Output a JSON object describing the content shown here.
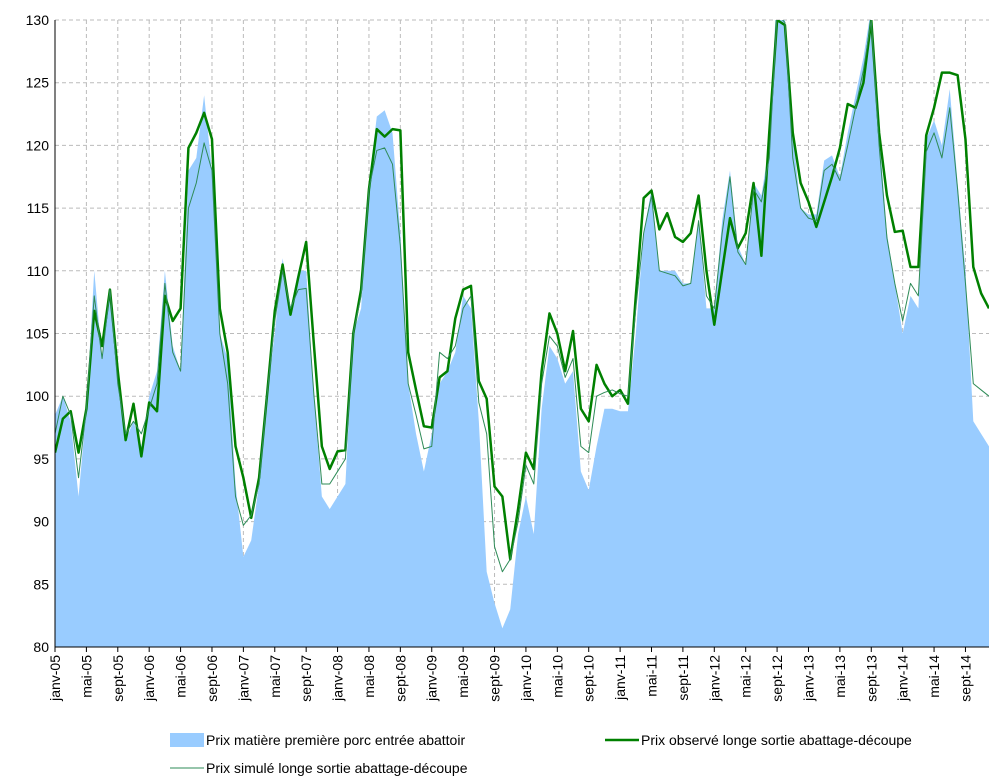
{
  "chart_data": {
    "type": "area-line",
    "categories": [
      "janv-05",
      null,
      null,
      null,
      "mai-05",
      null,
      null,
      null,
      "sept-05",
      null,
      null,
      null,
      "janv-06",
      null,
      null,
      null,
      "mai-06",
      null,
      null,
      null,
      "sept-06",
      null,
      null,
      null,
      "janv-07",
      null,
      null,
      null,
      "mai-07",
      null,
      null,
      null,
      "sept-07",
      null,
      null,
      null,
      "janv-08",
      null,
      null,
      null,
      "mai-08",
      null,
      null,
      null,
      "sept-08",
      null,
      null,
      null,
      "janv-09",
      null,
      null,
      null,
      "mai-09",
      null,
      null,
      null,
      "sept-09",
      null,
      null,
      null,
      "janv-10",
      null,
      null,
      null,
      "mai-10",
      null,
      null,
      null,
      "sept-10",
      null,
      null,
      null,
      "janv-11",
      null,
      null,
      null,
      "mai-11",
      null,
      null,
      null,
      "sept-11",
      null,
      null,
      null,
      "janv-12",
      null,
      null,
      null,
      "mai-12",
      null,
      null,
      null,
      "sept-12",
      null,
      null,
      null,
      "janv-13",
      null,
      null,
      null,
      "mai-13",
      null,
      null,
      null,
      "sept-13",
      null,
      null,
      null,
      "janv-14",
      null,
      null,
      null,
      "mai-14",
      null,
      null,
      null,
      "sept-14",
      null,
      null,
      null
    ],
    "series": [
      {
        "name": "Prix matière première porc entrée abattoir",
        "color": "#99ccff",
        "style": "area",
        "values": [
          98.5,
          100,
          98,
          92,
          99,
          110,
          103,
          108.5,
          101,
          96.5,
          98,
          96,
          100,
          102,
          110,
          104,
          102,
          118,
          119,
          124,
          118,
          105,
          103,
          93,
          87.2,
          88.5,
          93,
          100,
          105,
          111,
          107,
          110,
          110,
          100,
          92,
          91,
          92,
          93,
          105,
          107,
          117,
          122.3,
          122.8,
          121,
          113,
          101,
          97,
          94,
          97,
          101,
          102,
          103.5,
          108,
          107,
          98,
          86,
          83.5,
          81.5,
          83,
          89,
          92,
          89,
          99,
          104,
          103,
          101,
          102,
          94,
          92.5,
          96,
          99,
          99,
          98.8,
          98.8,
          105,
          113,
          116.5,
          110,
          110,
          110,
          109,
          109,
          114,
          107,
          107,
          114,
          118,
          112,
          110.5,
          117,
          116,
          120,
          133,
          130,
          121,
          115,
          114.5,
          114.5,
          118.8,
          119.2,
          117.5,
          121,
          124,
          127,
          131,
          121,
          113,
          109,
          105,
          108,
          107,
          120.5,
          122,
          120,
          124.5,
          117,
          110,
          98,
          97,
          96
        ]
      },
      {
        "name": "Prix observé longe sortie abattage-découpe",
        "color": "#008000",
        "style": "thick",
        "values": [
          95.5,
          98.2,
          98.8,
          95.5,
          99,
          106.8,
          104,
          108.5,
          102,
          96.5,
          99.4,
          95.2,
          99.5,
          98.8,
          108,
          106,
          107,
          119.8,
          121,
          122.6,
          120.5,
          107,
          103.5,
          96,
          93.5,
          90.3,
          93.5,
          100,
          106.8,
          110.5,
          106.5,
          109.5,
          112.3,
          104,
          96,
          94.2,
          95.6,
          95.7,
          105,
          108.5,
          116.5,
          121.3,
          120.7,
          121.3,
          121.2,
          103.5,
          100.5,
          97.6,
          97.5,
          101.5,
          102,
          106.2,
          108.5,
          108.8,
          101.2,
          99.8,
          92.8,
          92,
          87,
          91,
          95.5,
          94.2,
          102,
          106.6,
          105,
          102,
          105.2,
          99,
          98,
          102.5,
          101,
          100,
          100.5,
          99.4,
          108,
          115.8,
          116.4,
          113.3,
          114.6,
          112.7,
          112.3,
          113,
          116,
          110,
          105.7,
          110,
          114.2,
          111.8,
          113,
          117,
          111.2,
          121,
          130,
          129.6,
          121,
          117,
          115.5,
          113.5,
          115.5,
          117.5,
          119.8,
          123.3,
          123,
          125,
          130,
          121,
          116,
          113.1,
          113.2,
          110.3,
          110.3,
          120.8,
          123,
          125.8,
          125.8,
          125.6,
          120.5,
          110.3,
          108.2,
          107
        ]
      },
      {
        "name": "Prix simulé longe sortie abattage-découpe",
        "color": "#2e8b57",
        "style": "thin",
        "values": [
          97,
          100,
          98.5,
          93.5,
          99,
          108,
          103,
          108.5,
          101,
          97,
          98,
          97,
          99,
          101,
          109,
          103.5,
          102,
          115,
          117,
          120.2,
          118,
          105,
          101,
          92,
          89.7,
          90.5,
          93,
          100,
          106,
          110,
          107,
          108.5,
          108.6,
          100,
          93,
          93,
          94,
          95,
          105,
          108,
          116.5,
          119.6,
          119.8,
          118.5,
          112,
          101,
          98.5,
          95.8,
          96,
          103.5,
          103,
          104,
          107,
          108,
          99.5,
          97,
          88,
          86,
          87,
          90,
          94.5,
          93,
          101,
          104.8,
          104,
          101.5,
          103,
          96,
          95.5,
          100,
          100.3,
          100.5,
          100.2,
          100,
          107,
          113,
          116,
          110,
          109.8,
          109.6,
          108.8,
          109,
          114,
          108,
          107,
          113,
          117.5,
          111.5,
          110.5,
          116.5,
          115.5,
          119,
          130.5,
          129.8,
          119,
          115,
          114.2,
          114,
          118,
          118.5,
          117.2,
          120,
          123,
          126,
          130,
          120,
          112.6,
          109,
          106,
          109,
          108,
          119.5,
          121,
          119,
          123,
          116.5,
          109,
          101,
          100.5,
          100
        ]
      }
    ],
    "ylim": [
      80,
      130
    ],
    "yticks": [
      80,
      85,
      90,
      95,
      100,
      105,
      110,
      115,
      120,
      125,
      130
    ],
    "grid": true
  }
}
